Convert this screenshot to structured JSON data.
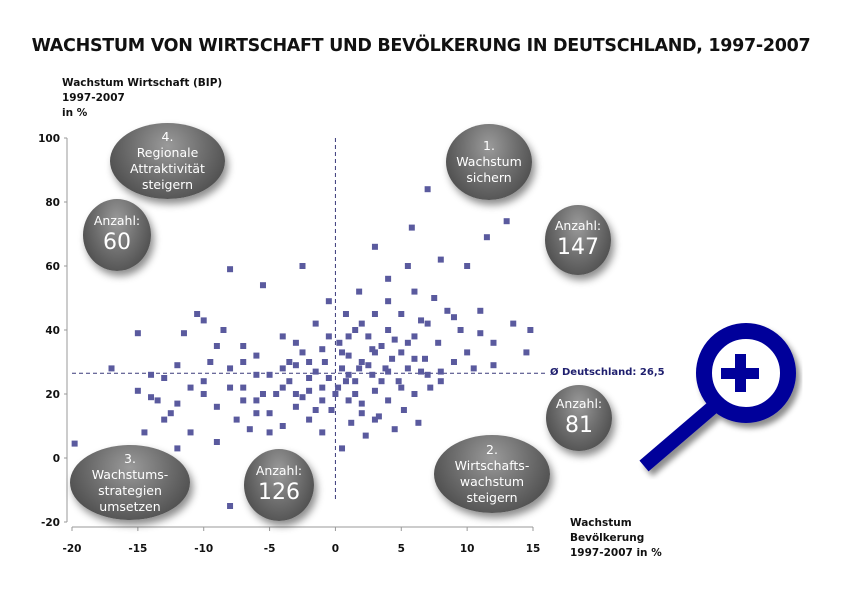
{
  "chart_data": {
    "type": "scatter",
    "title": "WACHSTUM VON WIRTSCHAFT UND BEVÖLKERUNG IN DEUTSCHLAND, 1997-2007",
    "ylabel": [
      "Wachstum Wirtschaft (BIP)",
      "1997-2007",
      "in %"
    ],
    "xlabel": [
      "Wachstum",
      "Bevölkerung",
      "1997-2007 in %"
    ],
    "xlim": [
      -20,
      15
    ],
    "ylim": [
      -20,
      100
    ],
    "xticks": [
      "-20",
      "-15",
      "-10",
      "-5",
      "0",
      "5",
      "10",
      "15"
    ],
    "yticks": [
      "100",
      "80",
      "60",
      "40",
      "20",
      "0",
      "-20"
    ],
    "marker_color": "#5a5a9e",
    "reference_lines": {
      "x": 0,
      "y": 26.5,
      "y_label": "Ø Deutschland: 26,5"
    },
    "quadrants": [
      {
        "number": "1.",
        "lines": [
          "Wachstum",
          "sichern"
        ],
        "count_label": "Anzahl:",
        "count": "147"
      },
      {
        "number": "2.",
        "lines": [
          "Wirtschafts-",
          "wachstum",
          "steigern"
        ],
        "count_label": "Anzahl:",
        "count": "81"
      },
      {
        "number": "3.",
        "lines": [
          "Wachstums-",
          "strategien",
          "umsetzen"
        ],
        "count_label": "Anzahl:",
        "count": "126"
      },
      {
        "number": "4.",
        "lines": [
          "Regionale",
          "Attraktivität",
          "steigern"
        ],
        "count_label": "Anzahl:",
        "count": "60"
      }
    ],
    "points": [
      [
        -19.8,
        4.5
      ],
      [
        -17,
        28
      ],
      [
        -15,
        39
      ],
      [
        -15,
        21
      ],
      [
        -14.5,
        8
      ],
      [
        -14,
        26
      ],
      [
        -13.5,
        18
      ],
      [
        -13,
        12
      ],
      [
        -12.5,
        14
      ],
      [
        -12,
        3
      ],
      [
        -11.5,
        39
      ],
      [
        -11,
        8
      ],
      [
        -11,
        22
      ],
      [
        -10.5,
        45
      ],
      [
        -10,
        43
      ],
      [
        -10,
        24
      ],
      [
        -9.5,
        30
      ],
      [
        -9,
        16
      ],
      [
        -9,
        5
      ],
      [
        -8.5,
        40
      ],
      [
        -8,
        59
      ],
      [
        -8,
        -15
      ],
      [
        -8,
        28
      ],
      [
        -7.5,
        12
      ],
      [
        -7,
        35
      ],
      [
        -7,
        22
      ],
      [
        -6.5,
        9
      ],
      [
        -6,
        18
      ],
      [
        -6,
        32
      ],
      [
        -5.5,
        54
      ],
      [
        -5,
        26
      ],
      [
        -5,
        14
      ],
      [
        -4.5,
        20
      ],
      [
        -4,
        38
      ],
      [
        -4,
        10
      ],
      [
        -3.5,
        24
      ],
      [
        -3,
        29
      ],
      [
        -3,
        16
      ],
      [
        -2.5,
        60
      ],
      [
        -2.5,
        33
      ],
      [
        -2,
        21
      ],
      [
        -2,
        12
      ],
      [
        -1.5,
        27
      ],
      [
        -1.5,
        42
      ],
      [
        -1,
        18
      ],
      [
        -1,
        8
      ],
      [
        -0.8,
        30
      ],
      [
        -0.5,
        25
      ],
      [
        -0.5,
        49
      ],
      [
        -0.3,
        15
      ],
      [
        0.2,
        22
      ],
      [
        0.3,
        36
      ],
      [
        0.5,
        3
      ],
      [
        0.5,
        28
      ],
      [
        0.8,
        45
      ],
      [
        1,
        18
      ],
      [
        1,
        32
      ],
      [
        1.2,
        11
      ],
      [
        1.5,
        40
      ],
      [
        1.5,
        24
      ],
      [
        1.8,
        52
      ],
      [
        2,
        30
      ],
      [
        2,
        17
      ],
      [
        2.3,
        7
      ],
      [
        2.5,
        38
      ],
      [
        2.8,
        26
      ],
      [
        3,
        66
      ],
      [
        3,
        45
      ],
      [
        3,
        21
      ],
      [
        3.3,
        13
      ],
      [
        3.5,
        35
      ],
      [
        3.8,
        28
      ],
      [
        4,
        56
      ],
      [
        4,
        40
      ],
      [
        4,
        18
      ],
      [
        4.3,
        31
      ],
      [
        4.5,
        9
      ],
      [
        4.8,
        24
      ],
      [
        5,
        45
      ],
      [
        5,
        33
      ],
      [
        5.2,
        15
      ],
      [
        5.5,
        60
      ],
      [
        5.5,
        28
      ],
      [
        5.8,
        72
      ],
      [
        6,
        38
      ],
      [
        6,
        20
      ],
      [
        6.3,
        11
      ],
      [
        6.5,
        43
      ],
      [
        6.8,
        31
      ],
      [
        7,
        84
      ],
      [
        7,
        26
      ],
      [
        7.2,
        22
      ],
      [
        7.5,
        50
      ],
      [
        7.8,
        36
      ],
      [
        8,
        62
      ],
      [
        8,
        27
      ],
      [
        8.5,
        46
      ],
      [
        9,
        30
      ],
      [
        9.5,
        40
      ],
      [
        10,
        60
      ],
      [
        10.5,
        28
      ],
      [
        11,
        46
      ],
      [
        11.5,
        69
      ],
      [
        12,
        36
      ],
      [
        13,
        74
      ],
      [
        13.5,
        42
      ],
      [
        14.5,
        33
      ],
      [
        14.8,
        40
      ],
      [
        -13,
        25
      ],
      [
        -12,
        17
      ],
      [
        -9,
        35
      ],
      [
        -7,
        18
      ],
      [
        -6,
        26
      ],
      [
        -5,
        8
      ],
      [
        -4,
        22
      ],
      [
        -3,
        36
      ],
      [
        -2,
        25
      ],
      [
        -1,
        34
      ],
      [
        0,
        20
      ],
      [
        1,
        26
      ],
      [
        2,
        42
      ],
      [
        3,
        33
      ],
      [
        4,
        27
      ],
      [
        5,
        22
      ],
      [
        6,
        31
      ],
      [
        7,
        42
      ],
      [
        8,
        24
      ],
      [
        2,
        14
      ],
      [
        1,
        38
      ],
      [
        -1,
        22
      ],
      [
        -3,
        20
      ],
      [
        3,
        12
      ],
      [
        4,
        49
      ],
      [
        6,
        52
      ],
      [
        -2,
        30
      ],
      [
        0.5,
        33
      ],
      [
        1.5,
        20
      ],
      [
        2.5,
        29
      ],
      [
        3.5,
        24
      ],
      [
        -4,
        28
      ],
      [
        -6,
        14
      ],
      [
        -8,
        22
      ],
      [
        5.5,
        36
      ],
      [
        6.5,
        27
      ],
      [
        4.5,
        37
      ],
      [
        2.8,
        34
      ],
      [
        1.8,
        28
      ],
      [
        0.8,
        24
      ],
      [
        -0.5,
        38
      ],
      [
        -1.5,
        15
      ],
      [
        -2.5,
        19
      ],
      [
        -3.5,
        30
      ],
      [
        -5.5,
        20
      ],
      [
        -7,
        30
      ],
      [
        -10,
        20
      ],
      [
        -12,
        29
      ],
      [
        -14,
        19
      ],
      [
        9,
        44
      ],
      [
        10,
        33
      ],
      [
        11,
        39
      ],
      [
        12,
        29
      ]
    ]
  }
}
